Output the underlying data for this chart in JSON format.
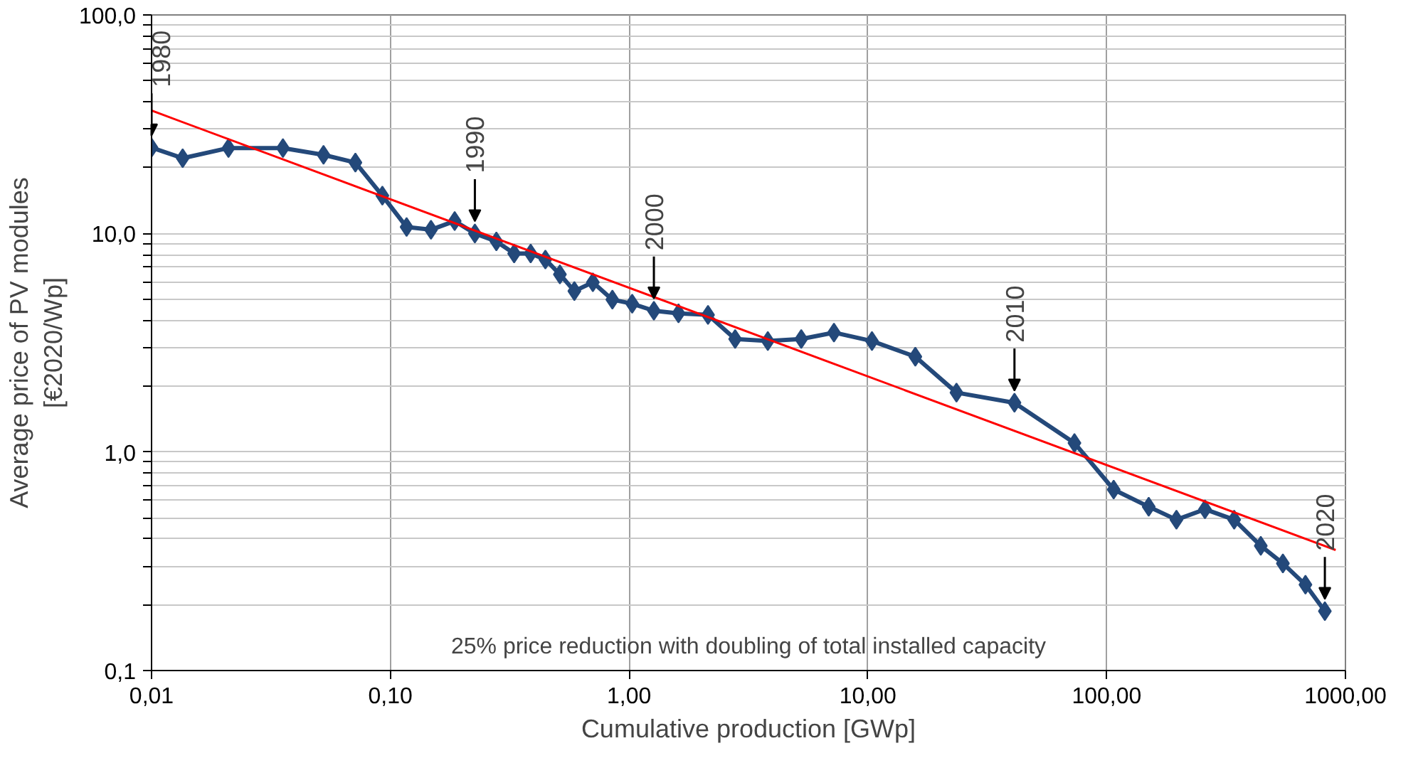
{
  "chart_data": {
    "type": "line",
    "xlabel": "Cumulative production [GWp]",
    "ylabel": "Average price of PV modules\n[€2020/Wp]",
    "log": "xy",
    "xlim": [
      0.01,
      1000
    ],
    "ylim": [
      0.1,
      100
    ],
    "xticks": [
      {
        "value": 0.01,
        "label": "0,01"
      },
      {
        "value": 0.1,
        "label": "0,10"
      },
      {
        "value": 1,
        "label": "1,00"
      },
      {
        "value": 10,
        "label": "10,00"
      },
      {
        "value": 100,
        "label": "100,00"
      },
      {
        "value": 1000,
        "label": "1000,00"
      }
    ],
    "yticks": [
      {
        "value": 0.1,
        "label": "0,1"
      },
      {
        "value": 0.2,
        "label": null
      },
      {
        "value": 0.3,
        "label": null
      },
      {
        "value": 0.4,
        "label": null
      },
      {
        "value": 0.5,
        "label": null
      },
      {
        "value": 0.6,
        "label": null
      },
      {
        "value": 0.7,
        "label": null
      },
      {
        "value": 0.8,
        "label": null
      },
      {
        "value": 0.9,
        "label": null
      },
      {
        "value": 1,
        "label": "1,0"
      },
      {
        "value": 2,
        "label": null
      },
      {
        "value": 3,
        "label": null
      },
      {
        "value": 4,
        "label": null
      },
      {
        "value": 5,
        "label": null
      },
      {
        "value": 6,
        "label": null
      },
      {
        "value": 7,
        "label": null
      },
      {
        "value": 8,
        "label": null
      },
      {
        "value": 9,
        "label": null
      },
      {
        "value": 10,
        "label": "10,0"
      },
      {
        "value": 20,
        "label": null
      },
      {
        "value": 30,
        "label": null
      },
      {
        "value": 40,
        "label": null
      },
      {
        "value": 50,
        "label": null
      },
      {
        "value": 60,
        "label": null
      },
      {
        "value": 70,
        "label": null
      },
      {
        "value": 80,
        "label": null
      },
      {
        "value": 90,
        "label": null
      },
      {
        "value": 100,
        "label": "100,0"
      }
    ],
    "grid": true,
    "series": [
      {
        "color": "#24497a",
        "marker": "diamond",
        "x": [
          0.01,
          0.0135,
          0.021,
          0.0355,
          0.0525,
          0.0714,
          0.0926,
          0.117,
          0.148,
          0.186,
          0.226,
          0.278,
          0.33,
          0.387,
          0.446,
          0.513,
          0.59,
          0.705,
          0.851,
          1.03,
          1.27,
          1.61,
          2.14,
          2.78,
          3.81,
          5.26,
          7.21,
          10.4,
          15.8,
          23.5,
          41.1,
          73.3,
          107,
          150,
          196,
          258,
          342,
          442,
          547,
          680,
          820
        ],
        "values": [
          24.7,
          22.1,
          24.6,
          24.6,
          22.9,
          21.1,
          14.9,
          10.7,
          10.4,
          11.4,
          10.0,
          9.2,
          8.1,
          8.1,
          7.6,
          6.5,
          5.45,
          5.98,
          4.98,
          4.77,
          4.43,
          4.31,
          4.24,
          3.29,
          3.22,
          3.29,
          3.52,
          3.22,
          2.73,
          1.87,
          1.68,
          1.1,
          0.673,
          0.562,
          0.49,
          0.547,
          0.49,
          0.372,
          0.309,
          0.247,
          0.187
        ]
      },
      {
        "color": "#ff0000",
        "marker": "none",
        "x": [
          0.01,
          910
        ],
        "values": [
          36.5,
          0.356
        ]
      }
    ],
    "annotations": [
      {
        "text": "1980",
        "x": 0.01,
        "y": 24.7
      },
      {
        "text": "1990",
        "x": 0.226,
        "y": 10.0
      },
      {
        "text": "2000",
        "x": 1.27,
        "y": 4.43
      },
      {
        "text": "2010",
        "x": 41.1,
        "y": 1.68
      },
      {
        "text": "2020",
        "x": 820,
        "y": 0.187
      },
      "25% price reduction with doubling of total installed capacity"
    ]
  }
}
